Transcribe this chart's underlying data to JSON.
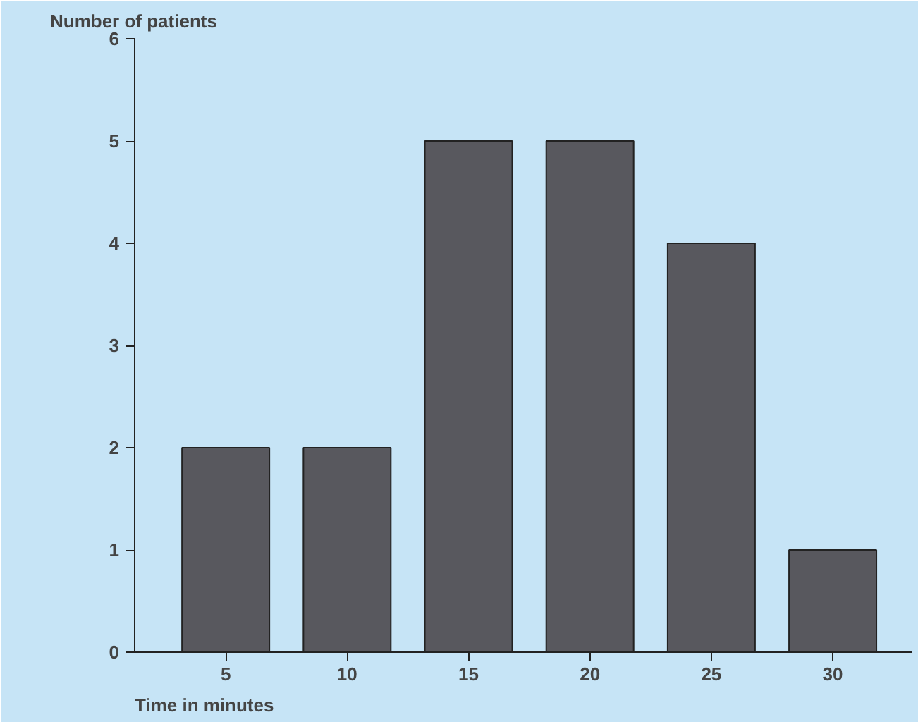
{
  "chart_data": {
    "type": "bar",
    "ylabel": "Number of patients",
    "xlabel": "Time in minutes",
    "categories": [
      "5",
      "10",
      "15",
      "20",
      "25",
      "30"
    ],
    "values": [
      2,
      2,
      5,
      5,
      4,
      1
    ],
    "color": "#58585e",
    "ylim": [
      0,
      6
    ],
    "yticks": [
      0,
      1,
      2,
      3,
      4,
      5,
      6
    ],
    "grid": false
  }
}
